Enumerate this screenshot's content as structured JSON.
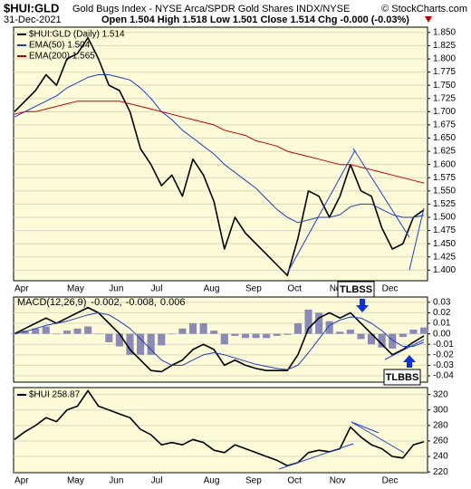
{
  "header": {
    "symbol": "$HUI:GLD",
    "subtitle": "Gold Bugs Index - NYSE Arca/SPDR Gold Shares INDX/NYSE",
    "source": "© StockCharts.com",
    "date": "31-Dec-2021",
    "quote": "Open 1.504 High 1.518 Low 1.501 Close 1.514 Chg -0.000 (-0.03%)"
  },
  "chart_data": [
    {
      "type": "line",
      "categories": [
        "Apr",
        null,
        null,
        null,
        null,
        "May",
        null,
        null,
        null,
        "Jun",
        null,
        null,
        null,
        "Jul",
        null,
        null,
        null,
        null,
        "Aug",
        null,
        null,
        null,
        "Sep",
        null,
        null,
        null,
        "Oct",
        null,
        null,
        null,
        "Nov",
        null,
        null,
        null,
        null,
        "Dec",
        null,
        null,
        null,
        null
      ],
      "ylim": [
        1.38,
        1.86
      ],
      "yticks": [
        {
          "value": 1.4,
          "label": "1.400"
        },
        1.425,
        {
          "value": 1.45,
          "label": "1.450"
        },
        1.475,
        {
          "value": 1.5,
          "label": "1.500"
        },
        1.525,
        {
          "value": 1.55,
          "label": "1.550"
        },
        1.575,
        {
          "value": 1.6,
          "label": "1.600"
        },
        1.625,
        {
          "value": 1.65,
          "label": "1.650"
        },
        1.675,
        {
          "value": 1.7,
          "label": "1.700"
        },
        1.725,
        {
          "value": 1.75,
          "label": "1.750"
        },
        1.775,
        {
          "value": 1.8,
          "label": "1.800"
        },
        1.825,
        {
          "value": 1.85,
          "label": "1.850"
        }
      ],
      "grid": true,
      "series": [
        {
          "name": "$HUI:GLD (Daily) 1.514",
          "color": "#000000",
          "width": 1.6,
          "values": [
            1.7,
            1.72,
            1.74,
            1.77,
            1.75,
            1.8,
            1.81,
            1.84,
            1.8,
            1.75,
            1.74,
            1.7,
            1.63,
            1.6,
            1.56,
            1.58,
            1.54,
            1.61,
            1.58,
            1.53,
            1.44,
            1.5,
            1.47,
            1.45,
            1.43,
            1.41,
            1.39,
            1.46,
            1.55,
            1.54,
            1.5,
            1.54,
            1.6,
            1.55,
            1.54,
            1.48,
            1.44,
            1.45,
            1.5,
            1.514
          ]
        },
        {
          "name": "EMA(50) 1.504",
          "color": "#1f3fbf",
          "width": 1,
          "values": [
            1.69,
            1.7,
            1.71,
            1.72,
            1.73,
            1.745,
            1.755,
            1.765,
            1.77,
            1.77,
            1.765,
            1.76,
            1.745,
            1.725,
            1.7,
            1.685,
            1.665,
            1.65,
            1.635,
            1.62,
            1.6,
            1.585,
            1.57,
            1.555,
            1.535,
            1.515,
            1.5,
            1.49,
            1.495,
            1.5,
            1.5,
            1.505,
            1.52,
            1.525,
            1.525,
            1.515,
            1.505,
            1.5,
            1.5,
            1.504
          ]
        },
        {
          "name": "EMA(200) 1.565",
          "color": "#c00000",
          "width": 1,
          "values": [
            1.695,
            1.7,
            1.7,
            1.705,
            1.71,
            1.715,
            1.72,
            1.72,
            1.72,
            1.72,
            1.72,
            1.715,
            1.71,
            1.705,
            1.7,
            1.695,
            1.69,
            1.685,
            1.68,
            1.675,
            1.665,
            1.66,
            1.655,
            1.645,
            1.64,
            1.635,
            1.625,
            1.62,
            1.615,
            1.61,
            1.605,
            1.6,
            1.6,
            1.595,
            1.59,
            1.585,
            1.58,
            1.575,
            1.57,
            1.565
          ]
        }
      ]
    },
    {
      "type": "line",
      "legend_title": "MACD(12,26,9)",
      "annotations": [
        "TLBSS",
        "TLBBS"
      ],
      "ylim": [
        -0.046,
        0.035
      ],
      "yticks": [
        0.03,
        0.02,
        0.01,
        {
          "value": 0,
          "label": "0.00"
        },
        -0.01,
        -0.02,
        -0.03,
        -0.04
      ],
      "grid": true,
      "series": [
        {
          "name": "-0.002,",
          "color": "#000000",
          "style": "line",
          "width": 1.6,
          "values": [
            0.0,
            0.005,
            0.01,
            0.015,
            0.01,
            0.015,
            0.02,
            0.025,
            0.02,
            0.01,
            0.0,
            -0.015,
            -0.025,
            -0.035,
            -0.036,
            -0.03,
            -0.025,
            -0.015,
            -0.01,
            -0.015,
            -0.03,
            -0.025,
            -0.03,
            -0.033,
            -0.035,
            -0.035,
            -0.035,
            -0.02,
            0.005,
            0.015,
            0.02,
            0.015,
            0.02,
            0.01,
            0.0,
            -0.01,
            -0.02,
            -0.015,
            -0.008,
            -0.002
          ]
        },
        {
          "name": "-0.008,",
          "color": "#1f3fbf",
          "style": "line",
          "width": 1,
          "values": [
            0.0,
            0.002,
            0.005,
            0.008,
            0.01,
            0.012,
            0.015,
            0.018,
            0.02,
            0.018,
            0.012,
            0.005,
            -0.005,
            -0.015,
            -0.025,
            -0.03,
            -0.03,
            -0.025,
            -0.02,
            -0.018,
            -0.02,
            -0.023,
            -0.026,
            -0.029,
            -0.031,
            -0.033,
            -0.034,
            -0.03,
            -0.018,
            -0.005,
            0.008,
            0.013,
            0.016,
            0.015,
            0.01,
            0.003,
            -0.006,
            -0.012,
            -0.012,
            -0.008
          ]
        },
        {
          "name": "0.006",
          "color": "#8a8ab8",
          "style": "histogram",
          "values": [
            0.0,
            0.003,
            0.005,
            0.007,
            0.0,
            0.003,
            0.005,
            0.007,
            0.0,
            -0.008,
            -0.012,
            -0.02,
            -0.02,
            -0.02,
            -0.011,
            0.0,
            0.005,
            0.01,
            0.01,
            0.003,
            -0.01,
            -0.002,
            -0.004,
            -0.004,
            -0.004,
            -0.002,
            -0.001,
            0.01,
            0.023,
            0.02,
            0.012,
            0.002,
            0.004,
            -0.005,
            -0.01,
            -0.013,
            -0.014,
            -0.003,
            0.004,
            0.006
          ]
        }
      ]
    },
    {
      "type": "line",
      "categories": [
        "Apr",
        null,
        null,
        null,
        null,
        "May",
        null,
        null,
        null,
        "Jun",
        null,
        null,
        null,
        "Jul",
        null,
        null,
        null,
        null,
        "Aug",
        null,
        null,
        null,
        "Sep",
        null,
        null,
        null,
        "Oct",
        null,
        null,
        null,
        "Nov",
        null,
        null,
        null,
        null,
        "Dec",
        null,
        null,
        null,
        null
      ],
      "ylim": [
        219,
        329
      ],
      "yticks": [
        220,
        240,
        260,
        280,
        300,
        320
      ],
      "grid": true,
      "series": [
        {
          "name": "$HUI 258.87",
          "color": "#000000",
          "width": 1.6,
          "values": [
            262,
            272,
            280,
            290,
            285,
            300,
            305,
            325,
            305,
            300,
            295,
            290,
            275,
            268,
            255,
            258,
            255,
            262,
            258,
            248,
            245,
            255,
            250,
            245,
            240,
            235,
            228,
            232,
            245,
            248,
            246,
            250,
            278,
            265,
            255,
            250,
            240,
            238,
            255,
            258.87
          ]
        }
      ]
    }
  ]
}
